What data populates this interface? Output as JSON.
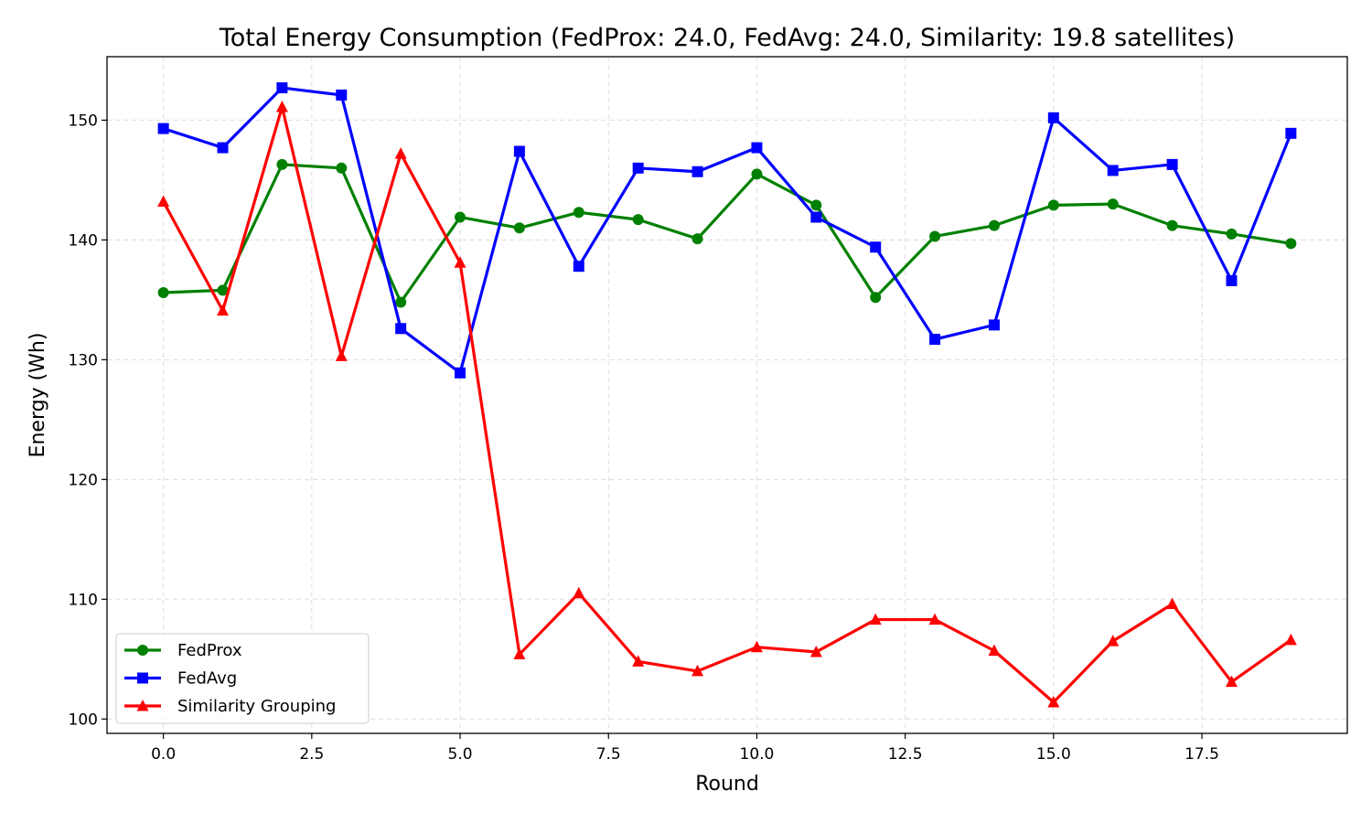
{
  "chart_data": {
    "type": "line",
    "title": "Total Energy Consumption (FedProx: 24.0, FedAvg: 24.0, Similarity: 19.8 satellites)",
    "xlabel": "Round",
    "ylabel": "Energy (Wh)",
    "xlim": [
      -0.95,
      19.95
    ],
    "ylim": [
      98.8,
      155.3
    ],
    "x_ticks": [
      0.0,
      2.5,
      5.0,
      7.5,
      10.0,
      12.5,
      15.0,
      17.5
    ],
    "x_tick_labels": [
      "0.0",
      "2.5",
      "5.0",
      "7.5",
      "10.0",
      "12.5",
      "15.0",
      "17.5"
    ],
    "y_ticks": [
      100,
      110,
      120,
      130,
      140,
      150
    ],
    "y_tick_labels": [
      "100",
      "110",
      "120",
      "130",
      "140",
      "150"
    ],
    "grid": true,
    "legend_position": "lower-left",
    "x": [
      0,
      1,
      2,
      3,
      4,
      5,
      6,
      7,
      8,
      9,
      10,
      11,
      12,
      13,
      14,
      15,
      16,
      17,
      18,
      19
    ],
    "series": [
      {
        "name": "FedProx",
        "color": "#008000",
        "marker": "circle",
        "values": [
          135.6,
          135.8,
          146.3,
          146.0,
          134.8,
          141.9,
          141.0,
          142.3,
          141.7,
          140.1,
          145.5,
          142.9,
          135.2,
          140.3,
          141.2,
          142.9,
          143.0,
          141.2,
          140.5,
          139.7
        ]
      },
      {
        "name": "FedAvg",
        "color": "#0000ff",
        "marker": "square",
        "values": [
          149.3,
          147.7,
          152.7,
          152.1,
          132.6,
          128.9,
          147.4,
          137.8,
          146.0,
          145.7,
          147.7,
          141.9,
          139.4,
          131.7,
          132.9,
          150.2,
          145.8,
          146.3,
          136.6,
          148.9
        ]
      },
      {
        "name": "Similarity Grouping",
        "color": "#ff0000",
        "marker": "triangle",
        "values": [
          143.2,
          134.1,
          151.1,
          130.3,
          147.2,
          138.1,
          105.4,
          110.5,
          104.8,
          104.0,
          106.0,
          105.6,
          108.3,
          108.3,
          105.7,
          101.4,
          106.5,
          109.6,
          103.1,
          106.6
        ]
      }
    ]
  }
}
